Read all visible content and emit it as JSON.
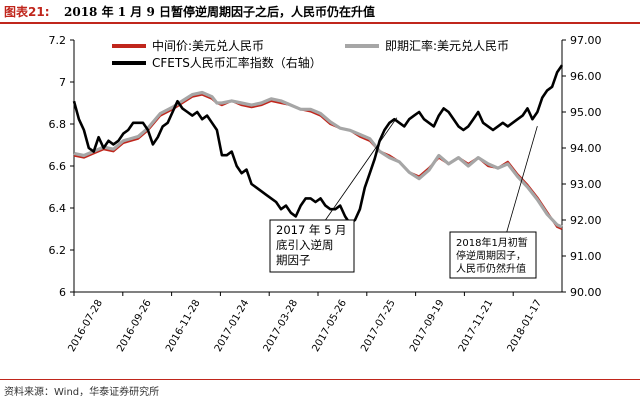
{
  "header": {
    "figure_label": "图表21:",
    "title": "2018 年 1 月 9 日暂停逆周期因子之后，人民币仍在升值"
  },
  "footer": {
    "source": "资料来源：Wind，华泰证券研究所"
  },
  "chart_data": {
    "type": "line",
    "x_tick_labels": [
      "2016-07-28",
      "2016-09-26",
      "2016-11-28",
      "2017-01-24",
      "2017-03-28",
      "2017-05-26",
      "2017-07-25",
      "2017-09-19",
      "2017-11-21",
      "2018-01-17"
    ],
    "left_axis": {
      "ylim": [
        6.0,
        7.2
      ],
      "ticks": [
        "6",
        "6.2",
        "6.4",
        "6.6",
        "6.8",
        "7",
        "7.2"
      ]
    },
    "right_axis": {
      "ylim": [
        90.0,
        97.0
      ],
      "ticks": [
        "90.00",
        "91.00",
        "92.00",
        "93.00",
        "94.00",
        "95.00",
        "96.00",
        "97.00"
      ]
    },
    "legend": {
      "placement": "top"
    },
    "colors": {
      "central": "#c0261c",
      "spot": "#a6a6a6",
      "cfets": "#000000"
    },
    "series": [
      {
        "name": "中间价:美元兑人民币",
        "axis": "left",
        "x": [
          0,
          4,
          8,
          12,
          16,
          20,
          26,
          30,
          35,
          40,
          44,
          48,
          52,
          56,
          58,
          60,
          64,
          68,
          72,
          76,
          80,
          84,
          88,
          92,
          96,
          100,
          104,
          108,
          112,
          116,
          120,
          124,
          128,
          132,
          136,
          140,
          144,
          148,
          152,
          156,
          160,
          164,
          168,
          172,
          176,
          180,
          184,
          188,
          192,
          196,
          198
        ],
        "values": [
          6.65,
          6.64,
          6.66,
          6.68,
          6.67,
          6.71,
          6.73,
          6.77,
          6.84,
          6.87,
          6.9,
          6.93,
          6.94,
          6.92,
          6.9,
          6.89,
          6.91,
          6.89,
          6.88,
          6.89,
          6.91,
          6.9,
          6.89,
          6.87,
          6.86,
          6.84,
          6.8,
          6.78,
          6.77,
          6.74,
          6.72,
          6.67,
          6.65,
          6.62,
          6.57,
          6.55,
          6.59,
          6.64,
          6.61,
          6.64,
          6.61,
          6.64,
          6.6,
          6.59,
          6.62,
          6.56,
          6.51,
          6.45,
          6.38,
          6.31,
          6.3
        ]
      },
      {
        "name": "即期汇率:美元兑人民币",
        "axis": "left",
        "x": [
          0,
          4,
          8,
          12,
          16,
          20,
          26,
          30,
          35,
          40,
          44,
          48,
          52,
          56,
          58,
          60,
          64,
          68,
          72,
          76,
          80,
          84,
          88,
          92,
          96,
          100,
          104,
          108,
          112,
          116,
          120,
          124,
          128,
          132,
          136,
          140,
          144,
          148,
          152,
          156,
          160,
          164,
          168,
          172,
          176,
          180,
          184,
          188,
          192,
          196,
          198
        ],
        "values": [
          6.66,
          6.65,
          6.67,
          6.69,
          6.68,
          6.72,
          6.74,
          6.78,
          6.85,
          6.88,
          6.91,
          6.94,
          6.95,
          6.93,
          6.9,
          6.9,
          6.91,
          6.9,
          6.89,
          6.9,
          6.92,
          6.91,
          6.89,
          6.87,
          6.87,
          6.85,
          6.81,
          6.78,
          6.77,
          6.75,
          6.73,
          6.67,
          6.64,
          6.62,
          6.57,
          6.54,
          6.58,
          6.65,
          6.61,
          6.64,
          6.6,
          6.64,
          6.61,
          6.59,
          6.61,
          6.55,
          6.5,
          6.44,
          6.37,
          6.32,
          6.31
        ]
      },
      {
        "name": "CFETS人民币汇率指数（右轴）",
        "axis": "right",
        "x": [
          0,
          2,
          4,
          6,
          8,
          10,
          12,
          14,
          16,
          18,
          20,
          22,
          24,
          26,
          28,
          30,
          32,
          34,
          36,
          38,
          40,
          42,
          44,
          46,
          48,
          50,
          52,
          54,
          56,
          58,
          60,
          62,
          64,
          66,
          68,
          70,
          72,
          74,
          76,
          78,
          80,
          82,
          84,
          86,
          88,
          90,
          92,
          94,
          96,
          98,
          100,
          102,
          104,
          106,
          108,
          110,
          112,
          114,
          116,
          118,
          120,
          122,
          124,
          126,
          128,
          130,
          132,
          134,
          136,
          138,
          140,
          142,
          144,
          146,
          148,
          150,
          152,
          154,
          156,
          158,
          160,
          162,
          164,
          166,
          168,
          170,
          172,
          174,
          176,
          178,
          180,
          182,
          184,
          186,
          188,
          190,
          192,
          194,
          196,
          198
        ],
        "values": [
          95.3,
          94.8,
          94.5,
          94.0,
          93.9,
          94.3,
          94.0,
          94.2,
          94.1,
          94.2,
          94.4,
          94.5,
          94.7,
          94.7,
          94.7,
          94.5,
          94.1,
          94.3,
          94.6,
          94.7,
          95.0,
          95.3,
          95.1,
          95.0,
          94.9,
          95.0,
          94.8,
          94.9,
          94.7,
          94.5,
          93.8,
          93.8,
          93.9,
          93.5,
          93.3,
          93.4,
          93.0,
          92.9,
          92.8,
          92.7,
          92.6,
          92.5,
          92.3,
          92.4,
          92.2,
          92.1,
          92.4,
          92.6,
          92.6,
          92.5,
          92.6,
          92.4,
          92.3,
          92.3,
          92.4,
          92.1,
          91.9,
          92.0,
          92.3,
          92.9,
          93.3,
          93.7,
          94.2,
          94.5,
          94.7,
          94.8,
          94.7,
          94.6,
          94.8,
          94.9,
          95.0,
          94.8,
          94.7,
          94.6,
          94.9,
          95.1,
          95.0,
          94.8,
          94.6,
          94.5,
          94.6,
          94.8,
          95.0,
          94.7,
          94.6,
          94.5,
          94.6,
          94.7,
          94.6,
          94.7,
          94.8,
          94.9,
          95.1,
          94.8,
          95.0,
          95.4,
          95.6,
          95.7,
          96.1,
          96.3
        ]
      }
    ],
    "annotations": [
      {
        "lines": [
          "2017 年 5 月",
          "底引入逆周",
          "期因子"
        ],
        "target": {
          "x": 131,
          "y": 6.83,
          "axis": "left"
        }
      },
      {
        "lines": [
          "2018年1月初暂",
          "停逆周期因子，",
          "人民币仍然升值"
        ],
        "target": {
          "x": 188,
          "y": 6.79,
          "axis": "left"
        }
      }
    ]
  }
}
